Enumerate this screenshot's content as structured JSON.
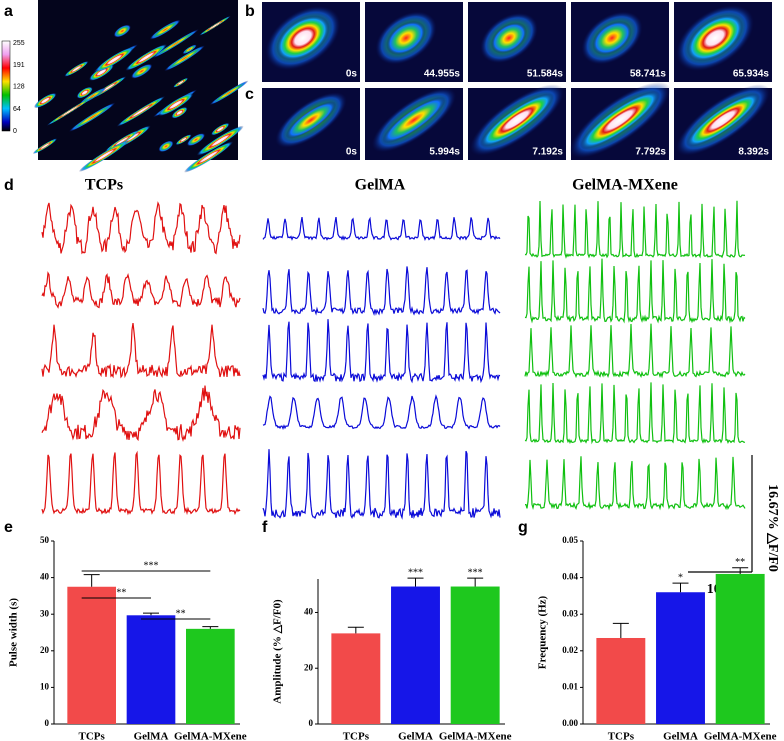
{
  "panel_labels": [
    "a",
    "b",
    "c",
    "d",
    "e",
    "f",
    "g"
  ],
  "panel_a": {
    "colorbar_ticks": [
      255,
      191,
      128,
      64,
      0
    ]
  },
  "panel_b": {
    "time_labels": [
      "0s",
      "44.955s",
      "51.584s",
      "58.741s",
      "65.934s"
    ]
  },
  "panel_c": {
    "time_labels": [
      "0s",
      "5.994s",
      "7.192s",
      "7.792s",
      "8.392s"
    ]
  },
  "panel_d": {
    "titles": [
      "TCPs",
      "GelMA",
      "GelMA-MXene"
    ],
    "scale_y": "16.67% △F/F0",
    "scale_x": "100s"
  },
  "chart_data": [
    {
      "type": "bar",
      "ylabel": "Pulse width (s)",
      "categories": [
        "TCPs",
        "GelMA",
        "GelMA-MXene"
      ],
      "values": [
        37.5,
        29.7,
        26
      ],
      "errors": [
        3.3,
        0.6,
        0.6
      ],
      "colors": [
        "#f24a4a",
        "#1616e8",
        "#1ec81e"
      ],
      "ylim": [
        0,
        50
      ],
      "yticks": [
        0,
        10,
        20,
        30,
        40,
        50
      ],
      "brackets": [
        {
          "from": 0,
          "to": 1,
          "label": "**"
        },
        {
          "from": 0,
          "to": 2,
          "label": "***"
        },
        {
          "from": 1,
          "to": 2,
          "label": "**"
        }
      ]
    },
    {
      "type": "bar",
      "ylabel": "Amplitude (% △F/F0)",
      "categories": [
        "TCPs",
        "GelMA",
        "GelMA-MXene"
      ],
      "values": [
        32.5,
        49.3,
        49.3
      ],
      "errors": [
        2.2,
        3,
        3
      ],
      "colors": [
        "#f24a4a",
        "#1616e8",
        "#1ec81e"
      ],
      "ylim": [
        0,
        52
      ],
      "yticks": [
        0,
        20,
        40
      ],
      "marks": [
        null,
        "***",
        "***"
      ]
    },
    {
      "type": "bar",
      "ylabel": "Frequency (Hz)",
      "categories": [
        "TCPs",
        "GelMA",
        "GelMA-MXene"
      ],
      "values": [
        0.0235,
        0.036,
        0.041
      ],
      "errors": [
        0.004,
        0.0025,
        0.0017
      ],
      "colors": [
        "#f24a4a",
        "#1616e8",
        "#1ec81e"
      ],
      "ylim": [
        0,
        0.05
      ],
      "yticks": [
        {
          "value": 0,
          "label": "0.00"
        },
        0.01,
        0.02,
        0.03,
        0.04,
        0.05
      ],
      "marks": [
        null,
        "*",
        "**"
      ]
    }
  ]
}
